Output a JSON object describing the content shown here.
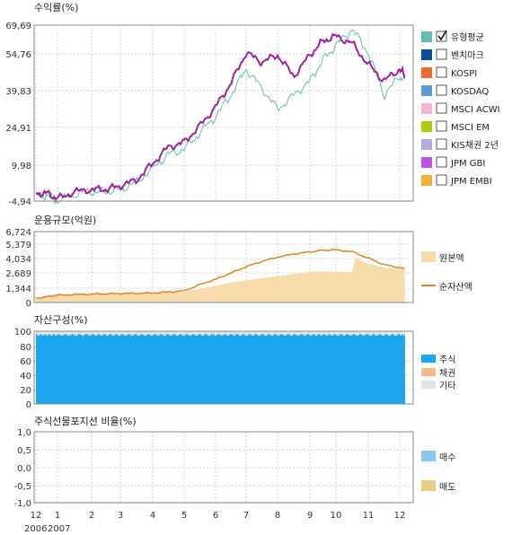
{
  "x_axis": {
    "labels": [
      "12",
      "1",
      "2",
      "3",
      "4",
      "5",
      "6",
      "7",
      "8",
      "9",
      "10",
      "11",
      "12"
    ],
    "years": [
      "2006",
      "2007"
    ]
  },
  "chart_data": [
    {
      "type": "line",
      "title": "수익률(%)",
      "ylim": [
        -4.94,
        69.69
      ],
      "y_ticks": [
        "69,69",
        "54,76",
        "39,83",
        "24,91",
        "9,98",
        "-4,94"
      ],
      "x_months": [
        0,
        0.5,
        1,
        1.5,
        2,
        2.5,
        3,
        3.5,
        4,
        4.5,
        5,
        5.5,
        6,
        6.5,
        7,
        7.5,
        8,
        8.5,
        9,
        9.5,
        10,
        10.5,
        11,
        11.5,
        12,
        12.4
      ],
      "series": [
        {
          "name": "유형평균",
          "color": "#a020a0",
          "values": [
            -2,
            -1.5,
            -4,
            -1,
            0,
            0,
            1.5,
            4,
            11,
            18,
            20,
            27,
            35,
            45,
            58,
            54,
            57,
            48,
            57,
            63,
            65,
            62,
            53,
            46,
            51,
            48
          ]
        },
        {
          "name": "벤치마크",
          "color": "#5bc0b0",
          "values": [
            -3,
            -2.5,
            -5,
            -2,
            -1,
            -1,
            0,
            3,
            9,
            15,
            17,
            24,
            31,
            40,
            51,
            43,
            34,
            40,
            46,
            55,
            61,
            68,
            58,
            40,
            48,
            46
          ]
        }
      ],
      "legend": [
        {
          "label": "유형평균",
          "color": "#5bc0b0",
          "checked": true
        },
        {
          "label": "벤치마크",
          "color": "#0a4f9e",
          "checked": false
        },
        {
          "label": "KOSPI",
          "color": "#f06c2c",
          "checked": false
        },
        {
          "label": "KOSDAQ",
          "color": "#5b9bd5",
          "checked": false
        },
        {
          "label": "MSCI ACWI",
          "color": "#f4b4d8",
          "checked": false
        },
        {
          "label": "MSCI EM",
          "color": "#b2cc00",
          "checked": false
        },
        {
          "label": "KIS채권 2년",
          "color": "#b8a8e0",
          "checked": false
        },
        {
          "label": "JPM GBI",
          "color": "#c050e8",
          "checked": false
        },
        {
          "label": "JPM EMBI",
          "color": "#f8b030",
          "checked": false
        }
      ]
    },
    {
      "type": "area",
      "title": "운용규모(억원)",
      "ylim": [
        0,
        6724
      ],
      "y_ticks": [
        "6,724",
        "5,379",
        "4,034",
        "2,689",
        "1,344",
        "0"
      ],
      "x_months": [
        0,
        1,
        2,
        3,
        4,
        5,
        5.5,
        6,
        6.5,
        7,
        7.5,
        8,
        8.5,
        9,
        9.5,
        10,
        10.5,
        10.6,
        11,
        11.5,
        12,
        12.4
      ],
      "series": [
        {
          "name": "원본액",
          "color": "#f5dcaa",
          "type": "area",
          "values": [
            400,
            700,
            800,
            850,
            900,
            1000,
            1300,
            1600,
            1900,
            2100,
            2300,
            2500,
            2700,
            2900,
            2950,
            2900,
            2900,
            4200,
            3700,
            3300,
            3200,
            3200
          ]
        },
        {
          "name": "순자산액",
          "color": "#e8821e",
          "type": "line",
          "values": [
            400,
            700,
            800,
            850,
            900,
            1100,
            1700,
            2200,
            2800,
            3400,
            3900,
            4300,
            4600,
            4800,
            4950,
            5000,
            4800,
            4700,
            4200,
            3600,
            3300,
            3200
          ]
        }
      ]
    },
    {
      "type": "area",
      "title": "자산구성(%)",
      "ylim": [
        0,
        100
      ],
      "y_ticks": [
        "100",
        "80",
        "60",
        "40",
        "20",
        "0"
      ],
      "series": [
        {
          "name": "주식",
          "color": "#1aa6f0",
          "values": [
            95
          ]
        },
        {
          "name": "채권",
          "color": "#f5b788",
          "values": [
            0
          ]
        },
        {
          "name": "기타",
          "color": "#e4e4dc",
          "values": [
            5
          ]
        }
      ]
    },
    {
      "type": "bar",
      "title": "주식선물포지션 비율(%)",
      "ylim": [
        -1.0,
        1.0
      ],
      "y_ticks": [
        "1,0",
        "0,5",
        "0,0",
        "-0,5",
        "-1,0"
      ],
      "series": [
        {
          "name": "매수",
          "color": "#88c8f0",
          "values": []
        },
        {
          "name": "매도",
          "color": "#e8cc80",
          "values": []
        }
      ]
    }
  ]
}
